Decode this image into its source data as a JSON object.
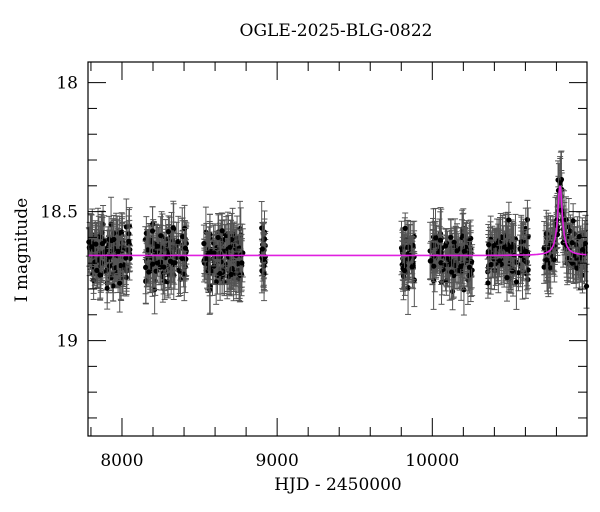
{
  "chart_data": {
    "type": "scatter",
    "title": "OGLE-2025-BLG-0822",
    "xlabel": "HJD - 2450000",
    "ylabel": "I magnitude",
    "xlim": [
      7781,
      10997
    ],
    "ylim": [
      19.37,
      17.92
    ],
    "y_inverted": true,
    "x_major_ticks": [
      8000,
      9000,
      10000
    ],
    "x_tick_labels": [
      "8000",
      "9000",
      "10000"
    ],
    "x_minor_step": 200,
    "y_major_ticks": [
      18,
      18.5,
      19
    ],
    "y_tick_labels": [
      "18",
      "18.5",
      "19"
    ],
    "y_minor_step": 0.1,
    "grid": false,
    "legend": null,
    "series": [
      {
        "name": "OGLE I-band photometry",
        "kind": "points_with_errorbars",
        "color": "#000000",
        "errorbar_color": "#555555",
        "baseline_mag": 18.67,
        "typical_scatter_mag": 0.05,
        "typical_error_mag": 0.08,
        "seasons": [
          {
            "start": 7785,
            "end": 8055,
            "n": 150
          },
          {
            "start": 8150,
            "end": 8420,
            "n": 130
          },
          {
            "start": 8520,
            "end": 8780,
            "n": 150
          },
          {
            "start": 8900,
            "end": 8925,
            "n": 25
          },
          {
            "start": 9800,
            "end": 9885,
            "n": 50
          },
          {
            "start": 9985,
            "end": 10260,
            "n": 130
          },
          {
            "start": 10355,
            "end": 10625,
            "n": 120
          },
          {
            "start": 10720,
            "end": 10995,
            "n": 130
          }
        ]
      },
      {
        "name": "Microlensing model fit",
        "kind": "line",
        "color": "#e020e0",
        "baseline_mag": 18.67,
        "peak_time": 10823,
        "peak_mag": 18.4,
        "half_width_days": 18
      }
    ],
    "annotations": []
  }
}
